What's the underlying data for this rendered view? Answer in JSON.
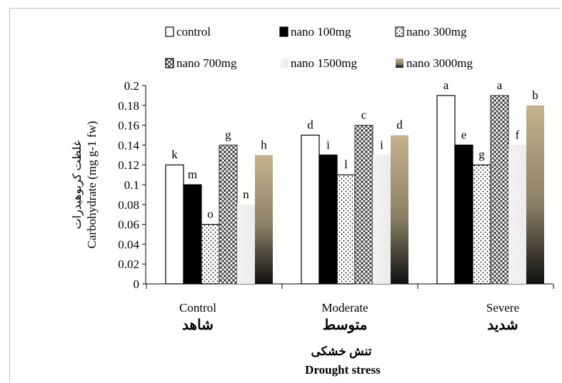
{
  "chart_data": {
    "type": "bar",
    "categories": [
      "Control",
      "Moderate",
      "Severe"
    ],
    "categories_fa": [
      "شاهد",
      "متوسط",
      "شدید"
    ],
    "series": [
      {
        "name": "control",
        "values": [
          0.12,
          0.15,
          0.19
        ],
        "letters": [
          "k",
          "d",
          "a"
        ],
        "pattern": "white"
      },
      {
        "name": "nano 100mg",
        "values": [
          0.1,
          0.13,
          0.14
        ],
        "letters": [
          "m",
          "i",
          "e"
        ],
        "pattern": "black"
      },
      {
        "name": "nano 300mg",
        "values": [
          0.06,
          0.11,
          0.12
        ],
        "letters": [
          "o",
          "l",
          "g"
        ],
        "pattern": "dots"
      },
      {
        "name": "nano 700mg",
        "values": [
          0.14,
          0.16,
          0.19
        ],
        "letters": [
          "g",
          "c",
          "a"
        ],
        "pattern": "cross"
      },
      {
        "name": "nano 1500mg",
        "values": [
          0.08,
          0.13,
          0.14
        ],
        "letters": [
          "n",
          "i",
          "f"
        ],
        "pattern": "lightgray"
      },
      {
        "name": "nano 3000mg",
        "values": [
          0.13,
          0.15,
          0.18
        ],
        "letters": [
          "h",
          "d",
          "b"
        ],
        "pattern": "gradient"
      }
    ],
    "ylim": [
      0,
      0.2
    ],
    "yticks": [
      "0",
      "0.02",
      "0.04",
      "0.06",
      "0.08",
      "0.1",
      "0.12",
      "0.14",
      "0.16",
      "0.18",
      "0.2"
    ],
    "ylabel": "Carbohydrate  (mg g-1 fw)",
    "ylabel_fa": "غلظت کربوهیدرات",
    "xlabel": "Drought stress",
    "xlabel_fa": "تنش خشکی",
    "legend_position": "top",
    "grid": false
  }
}
